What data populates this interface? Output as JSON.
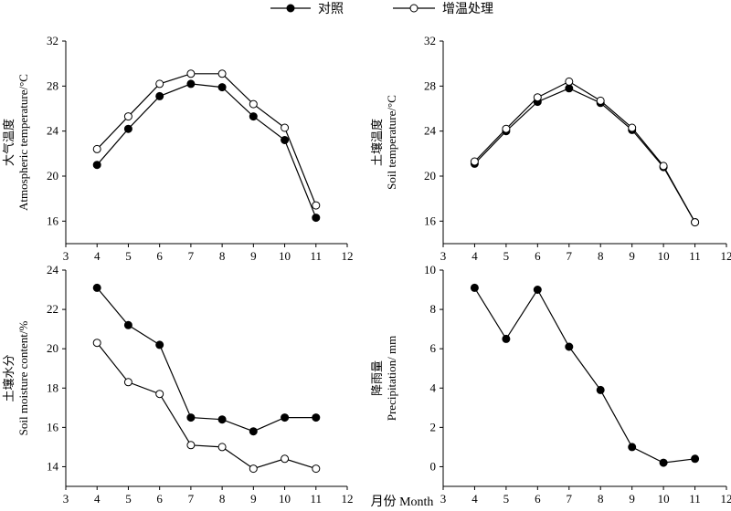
{
  "figure": {
    "legend": [
      {
        "label": "对照",
        "marker": "filled"
      },
      {
        "label": "增温处理",
        "marker": "open"
      }
    ],
    "xlabel": "月份 Month"
  },
  "chart_data": [
    {
      "type": "line",
      "ylabel_cn": "大气温度",
      "ylabel_en": "Atmospheric temperature/°C",
      "xlim": [
        3,
        12
      ],
      "xticks": [
        3,
        4,
        5,
        6,
        7,
        8,
        9,
        10,
        11,
        12
      ],
      "ylim": [
        14,
        32
      ],
      "yticks": [
        16,
        20,
        24,
        28,
        32
      ],
      "x": [
        4,
        5,
        6,
        7,
        8,
        9,
        10,
        11
      ],
      "series": [
        {
          "name": "对照",
          "marker": "filled",
          "values": [
            21.0,
            24.2,
            27.1,
            28.2,
            27.9,
            25.3,
            23.2,
            16.3
          ]
        },
        {
          "name": "增温处理",
          "marker": "open",
          "values": [
            22.4,
            25.3,
            28.2,
            29.1,
            29.1,
            26.4,
            24.3,
            17.4
          ]
        }
      ]
    },
    {
      "type": "line",
      "ylabel_cn": "土壤温度",
      "ylabel_en": "Soil temperature/°C",
      "xlim": [
        3,
        12
      ],
      "xticks": [
        3,
        4,
        5,
        6,
        7,
        8,
        9,
        10,
        11,
        12
      ],
      "ylim": [
        14,
        32
      ],
      "yticks": [
        16,
        20,
        24,
        28,
        32
      ],
      "x": [
        4,
        5,
        6,
        7,
        8,
        9,
        10,
        11
      ],
      "series": [
        {
          "name": "对照",
          "marker": "filled",
          "values": [
            21.1,
            24.0,
            26.6,
            27.8,
            26.5,
            24.1,
            20.8,
            15.9
          ]
        },
        {
          "name": "增温处理",
          "marker": "open",
          "values": [
            21.3,
            24.2,
            27.0,
            28.4,
            26.7,
            24.3,
            20.9,
            15.9
          ]
        }
      ]
    },
    {
      "type": "line",
      "ylabel_cn": "土壤水分",
      "ylabel_en": "Soil moisture content/%",
      "xlim": [
        3,
        12
      ],
      "xticks": [
        3,
        4,
        5,
        6,
        7,
        8,
        9,
        10,
        11,
        12
      ],
      "ylim": [
        13,
        24
      ],
      "yticks": [
        14,
        16,
        18,
        20,
        22,
        24
      ],
      "x": [
        4,
        5,
        6,
        7,
        8,
        9,
        10,
        11
      ],
      "series": [
        {
          "name": "对照",
          "marker": "filled",
          "values": [
            23.1,
            21.2,
            20.2,
            16.5,
            16.4,
            15.8,
            16.5,
            16.5
          ]
        },
        {
          "name": "增温处理",
          "marker": "open",
          "values": [
            20.3,
            18.3,
            17.7,
            15.1,
            15.0,
            13.9,
            14.4,
            13.9
          ]
        }
      ]
    },
    {
      "type": "line",
      "ylabel_cn": "降雨量",
      "ylabel_en": "Precipitation/ mm",
      "xlim": [
        3,
        12
      ],
      "xticks": [
        3,
        4,
        5,
        6,
        7,
        8,
        9,
        10,
        11,
        12
      ],
      "ylim": [
        -1,
        10
      ],
      "yticks": [
        0,
        2,
        4,
        6,
        8,
        10
      ],
      "x": [
        4,
        5,
        6,
        7,
        8,
        9,
        10,
        11
      ],
      "series": [
        {
          "name": "",
          "marker": "filled",
          "values": [
            9.1,
            6.5,
            9.0,
            6.1,
            3.9,
            1.0,
            0.2,
            0.4
          ]
        }
      ]
    }
  ]
}
